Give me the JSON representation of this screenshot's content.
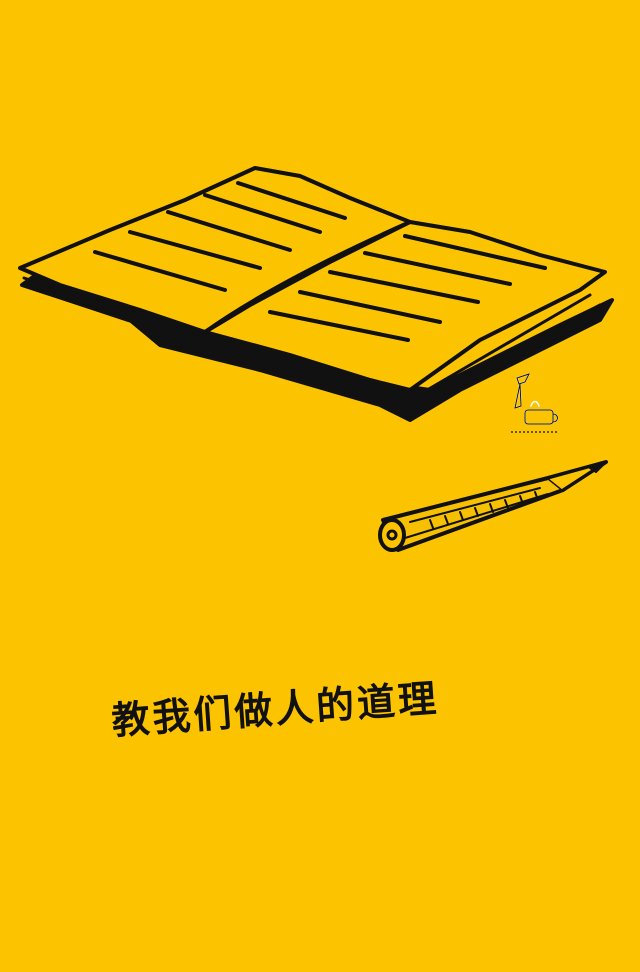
{
  "caption": {
    "text": "教我们做人的道理"
  },
  "colors": {
    "background": "#fcc300",
    "ink": "#111111",
    "page_fill": "#fcc300",
    "pencil_fill": "#f7c000"
  },
  "icons": {
    "book": "open-book-icon",
    "pencil": "pencil-icon",
    "watermark": "coffee-cup-watermark-icon"
  }
}
